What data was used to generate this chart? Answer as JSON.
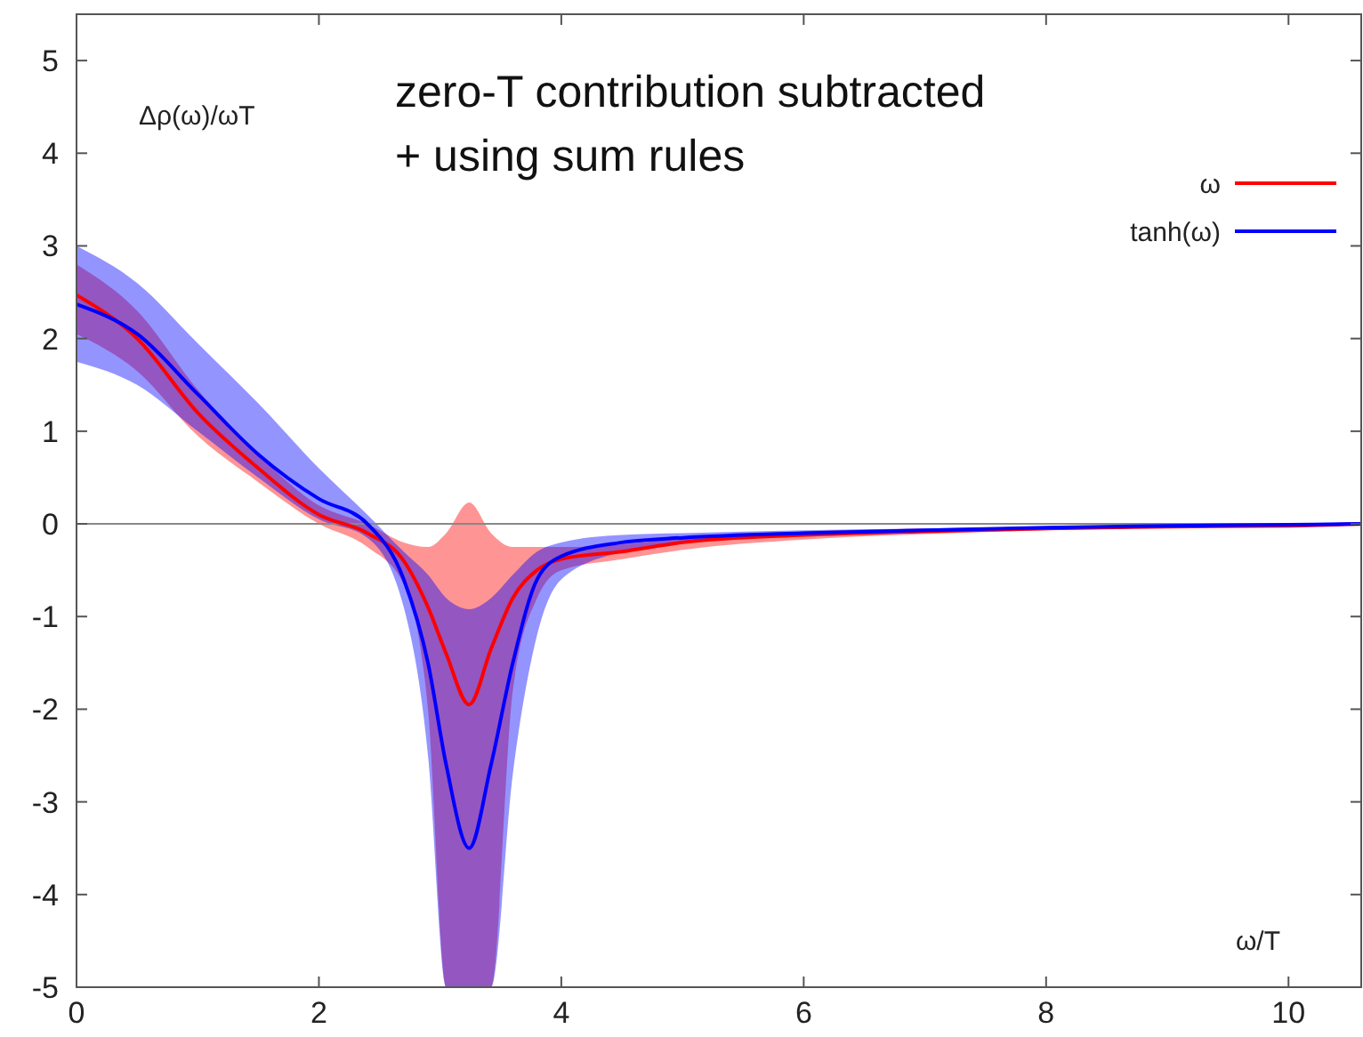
{
  "chart_data": {
    "type": "line",
    "title": "zero-T contribution subtracted\n+ using sum rules",
    "xlabel": "ω/T",
    "ylabel": "Δρ(ω)/ωT",
    "x": [
      0,
      0.5,
      1,
      1.5,
      2,
      2.4,
      2.7,
      2.9,
      3.05,
      3.24,
      3.42,
      3.6,
      3.8,
      4.0,
      4.5,
      5,
      6,
      7,
      8,
      9,
      10,
      10.6
    ],
    "series": [
      {
        "name": "ω",
        "color": "#ff0000",
        "values": [
          2.47,
          2.0,
          1.2,
          0.6,
          0.1,
          -0.1,
          -0.4,
          -0.9,
          -1.4,
          -1.95,
          -1.35,
          -0.8,
          -0.5,
          -0.38,
          -0.3,
          -0.2,
          -0.12,
          -0.08,
          -0.05,
          -0.03,
          -0.02,
          0
        ],
        "lower": [
          2.05,
          1.65,
          0.95,
          0.45,
          0.0,
          -0.25,
          -0.65,
          -2,
          -5,
          -5,
          -5,
          -1.8,
          -0.8,
          -0.5,
          -0.38,
          -0.28,
          -0.17,
          -0.11,
          -0.07,
          -0.04,
          -0.02,
          -0.01
        ],
        "upper": [
          2.8,
          2.3,
          1.45,
          0.75,
          0.2,
          0.0,
          -0.2,
          -0.25,
          -0.1,
          0.23,
          -0.1,
          -0.25,
          -0.25,
          -0.25,
          -0.22,
          -0.15,
          -0.08,
          -0.05,
          -0.03,
          -0.02,
          0,
          0.01
        ]
      },
      {
        "name": "tanh(ω)",
        "color": "#0000ff",
        "values": [
          2.37,
          2.05,
          1.4,
          0.75,
          0.27,
          0,
          -0.6,
          -1.5,
          -2.6,
          -3.5,
          -2.6,
          -1.5,
          -0.6,
          -0.35,
          -0.2,
          -0.15,
          -0.1,
          -0.07,
          -0.04,
          -0.02,
          -0.01,
          0
        ],
        "lower": [
          1.75,
          1.5,
          1.0,
          0.5,
          0.05,
          -0.15,
          -0.9,
          -2.5,
          -5,
          -5,
          -5,
          -2.7,
          -1.2,
          -0.6,
          -0.3,
          -0.2,
          -0.12,
          -0.08,
          -0.05,
          -0.03,
          -0.015,
          0
        ],
        "upper": [
          3.0,
          2.6,
          1.95,
          1.3,
          0.6,
          0.1,
          -0.3,
          -0.55,
          -0.8,
          -0.92,
          -0.8,
          -0.55,
          -0.3,
          -0.2,
          -0.12,
          -0.1,
          -0.07,
          -0.05,
          -0.03,
          -0.015,
          -0.005,
          0
        ]
      }
    ],
    "xlim": [
      0,
      10.6
    ],
    "xticks": [
      0,
      2,
      4,
      6,
      8,
      10
    ],
    "ylim": [
      -5,
      5.5
    ],
    "yticks": [
      -5,
      -4,
      -3,
      -2,
      -1,
      0,
      1,
      2,
      3,
      4,
      5
    ],
    "ref_lines": [
      {
        "axis": "y",
        "value": 0,
        "color": "#888888"
      }
    ],
    "legend": "top right",
    "grid": false
  }
}
